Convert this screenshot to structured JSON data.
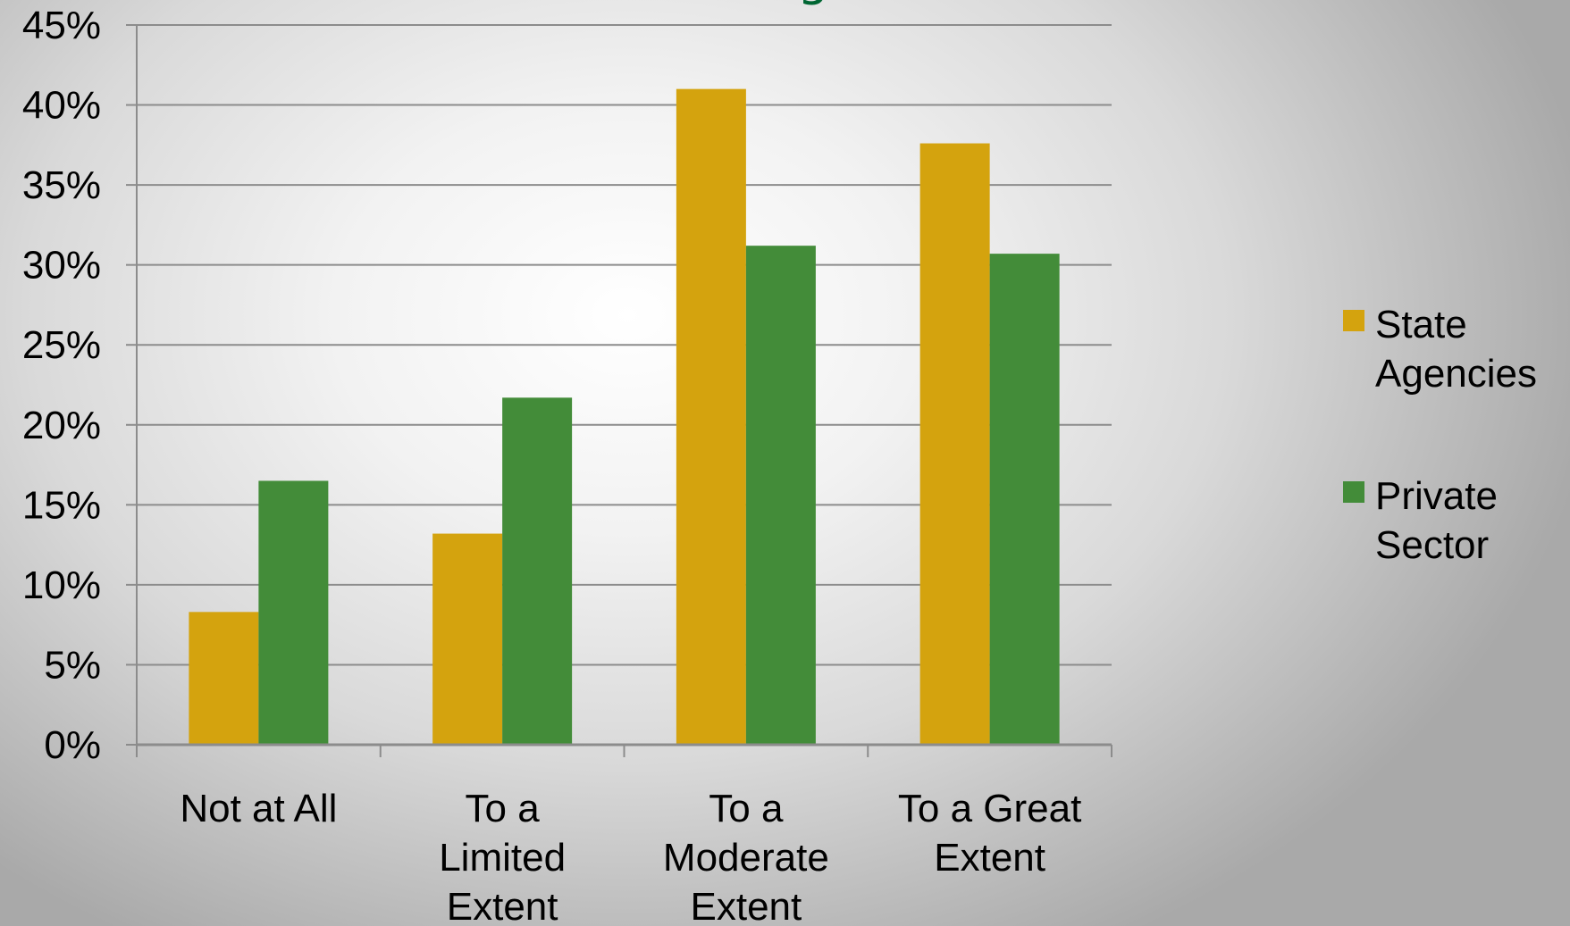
{
  "chart_data": {
    "type": "bar",
    "title": "g",
    "xlabel": "",
    "ylabel": "",
    "categories": [
      [
        "Not at All"
      ],
      [
        "To a",
        "Limited",
        "Extent"
      ],
      [
        "To a",
        "Moderate",
        "Extent"
      ],
      [
        "To a Great",
        "Extent"
      ]
    ],
    "series": [
      {
        "name": "State Agencies",
        "legend_lines": [
          "State",
          "Agencies"
        ],
        "color": "#d4a30e",
        "values": [
          8.3,
          13.2,
          41.0,
          37.6
        ]
      },
      {
        "name": "Private Sector",
        "legend_lines": [
          "Private",
          "Sector"
        ],
        "color": "#438c39",
        "values": [
          16.5,
          21.7,
          31.2,
          30.7
        ]
      }
    ],
    "ylim": [
      0,
      45
    ],
    "y_ticks": [
      0,
      5,
      10,
      15,
      20,
      25,
      30,
      35,
      40,
      45
    ],
    "y_tick_format": "percent",
    "grid": true,
    "legend_position": "right"
  }
}
